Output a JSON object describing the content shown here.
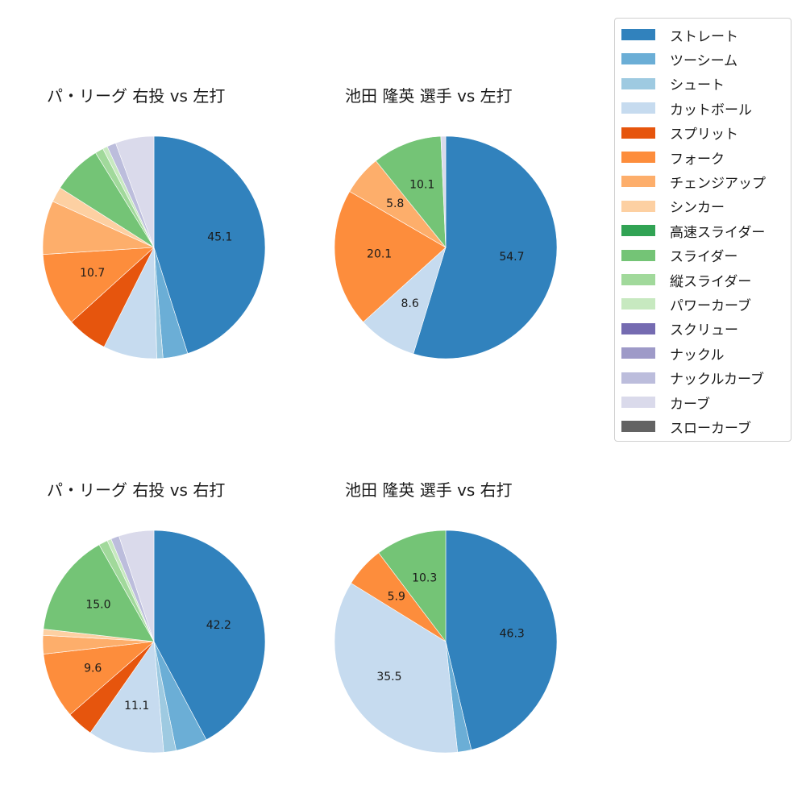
{
  "legend": {
    "items": [
      {
        "label": "ストレート",
        "color": "#3182bd"
      },
      {
        "label": "ツーシーム",
        "color": "#6baed6"
      },
      {
        "label": "シュート",
        "color": "#9ecae1"
      },
      {
        "label": "カットボール",
        "color": "#c6dbef"
      },
      {
        "label": "スプリット",
        "color": "#e6550d"
      },
      {
        "label": "フォーク",
        "color": "#fd8d3c"
      },
      {
        "label": "チェンジアップ",
        "color": "#fdae6b"
      },
      {
        "label": "シンカー",
        "color": "#fdd0a2"
      },
      {
        "label": "高速スライダー",
        "color": "#31a354"
      },
      {
        "label": "スライダー",
        "color": "#74c476"
      },
      {
        "label": "縦スライダー",
        "color": "#a1d99b"
      },
      {
        "label": "パワーカーブ",
        "color": "#c7e9c0"
      },
      {
        "label": "スクリュー",
        "color": "#756bb1"
      },
      {
        "label": "ナックル",
        "color": "#9e9ac8"
      },
      {
        "label": "ナックルカーブ",
        "color": "#bcbddc"
      },
      {
        "label": "カーブ",
        "color": "#dadaeb"
      },
      {
        "label": "スローカーブ",
        "color": "#636363"
      }
    ]
  },
  "chart_data": [
    {
      "type": "pie",
      "title": "パ・リーグ 右投 vs 左打",
      "categories": [
        "ストレート",
        "ツーシーム",
        "シュート",
        "カットボール",
        "スプリット",
        "フォーク",
        "チェンジアップ",
        "シンカー",
        "スライダー",
        "縦スライダー",
        "パワーカーブ",
        "ナックルカーブ",
        "カーブ"
      ],
      "values": [
        45.1,
        3.6,
        0.9,
        7.8,
        5.9,
        10.7,
        7.8,
        2.2,
        7.2,
        1.2,
        0.7,
        1.3,
        5.6
      ],
      "labels_shown": [
        "45.1",
        null,
        null,
        null,
        null,
        "10.7",
        null,
        null,
        null,
        null,
        null,
        null,
        null
      ],
      "startangle": 90,
      "direction": "clockwise"
    },
    {
      "type": "pie",
      "title": "池田 隆英 選手 vs 左打",
      "categories": [
        "ストレート",
        "カットボール",
        "フォーク",
        "チェンジアップ",
        "スライダー",
        "カーブ"
      ],
      "values": [
        54.7,
        8.6,
        20.1,
        5.8,
        10.1,
        0.7
      ],
      "labels_shown": [
        "54.7",
        "8.6",
        "20.1",
        "5.8",
        "10.1",
        null
      ],
      "startangle": 90,
      "direction": "clockwise"
    },
    {
      "type": "pie",
      "title": "パ・リーグ 右投 vs 右打",
      "categories": [
        "ストレート",
        "ツーシーム",
        "シュート",
        "カットボール",
        "スプリット",
        "フォーク",
        "チェンジアップ",
        "シンカー",
        "スライダー",
        "縦スライダー",
        "パワーカーブ",
        "ナックルカーブ",
        "カーブ"
      ],
      "values": [
        42.2,
        4.6,
        1.8,
        11.1,
        3.9,
        9.6,
        2.7,
        0.9,
        15.0,
        1.3,
        0.6,
        1.2,
        5.1
      ],
      "labels_shown": [
        "42.2",
        null,
        null,
        "11.1",
        null,
        "9.6",
        null,
        null,
        "15.0",
        null,
        null,
        null,
        null
      ],
      "startangle": 90,
      "direction": "clockwise"
    },
    {
      "type": "pie",
      "title": "池田 隆英 選手 vs 右打",
      "categories": [
        "ストレート",
        "ツーシーム",
        "カットボール",
        "フォーク",
        "スライダー"
      ],
      "values": [
        46.3,
        2.0,
        35.5,
        5.9,
        10.3
      ],
      "labels_shown": [
        "46.3",
        null,
        "35.5",
        "5.9",
        "10.3"
      ],
      "startangle": 90,
      "direction": "clockwise"
    }
  ]
}
